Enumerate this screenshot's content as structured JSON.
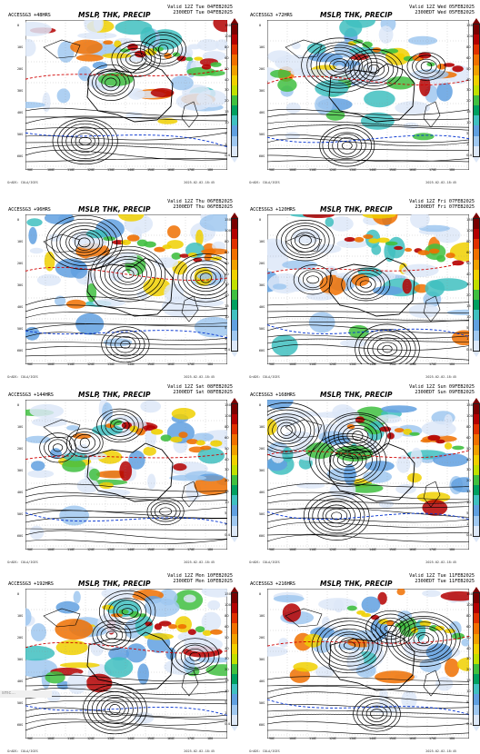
{
  "panels": [
    {
      "model_run": "ACCESSG3 +48HRS",
      "title": "MSLP, THK, PRECIP",
      "valid_line1": "Valid 12Z Tue 04FEB2025",
      "valid_line2": "2300EDT Tue 04FEB2025"
    },
    {
      "model_run": "ACCESSG3 +72HRS",
      "title": "MSLP, THK, PRECIP",
      "valid_line1": "Valid 12Z Wed 05FEB2025",
      "valid_line2": "2300EDT Wed 05FEB2025"
    },
    {
      "model_run": "ACCESSG3 +96HRS",
      "title": "MSLP, THK, PRECIP",
      "valid_line1": "Valid 12Z Thu 06FEB2025",
      "valid_line2": "2300EDT Thu 06FEB2025"
    },
    {
      "model_run": "ACCESSG3 +120HRS",
      "title": "MSLP, THK, PRECIP",
      "valid_line1": "Valid 12Z Fri 07FEB2025",
      "valid_line2": "2300EDT Fri 07FEB2025"
    },
    {
      "model_run": "ACCESSG3 +144HRS",
      "title": "MSLP, THK, PRECIP",
      "valid_line1": "Valid 12Z Sat 08FEB2025",
      "valid_line2": "2300EDT Sat 08FEB2025"
    },
    {
      "model_run": "ACCESSG3 +168HRS",
      "title": "MSLP, THK, PRECIP",
      "valid_line1": "Valid 12Z Sun 09FEB2025",
      "valid_line2": "2300EDT Sun 09FEB2025"
    },
    {
      "model_run": "ACCESSG3 +192HRS",
      "title": "MSLP, THK, PRECIP",
      "valid_line1": "Valid 12Z Mon 10FEB2025",
      "valid_line2": "2300EDT Mon 10FEB2025"
    },
    {
      "model_run": "ACCESSG3 +216HRS",
      "title": "MSLP, THK, PRECIP",
      "valid_line1": "Valid 12Z Tue 11FEB2025",
      "valid_line2": "2300EDT Tue 11FEB2025"
    }
  ],
  "colorbar_labels": [
    "150",
    "100",
    "80",
    "60",
    "50",
    "40",
    "30",
    "20",
    "15",
    "10",
    "5",
    "1",
    "0.4"
  ],
  "colorbar_colors": [
    "#7a0000",
    "#b40000",
    "#e03000",
    "#f07000",
    "#f0a000",
    "#f0d000",
    "#c0e000",
    "#40c040",
    "#00a060",
    "#40c0c0",
    "#60a0e0",
    "#a0c8f0",
    "#dde8f8"
  ],
  "x_ticks": [
    "90E",
    "100E",
    "110E",
    "120E",
    "130E",
    "140E",
    "150E",
    "160E",
    "170E",
    "180"
  ],
  "y_ticks": [
    "0",
    "10S",
    "20S",
    "30S",
    "40S",
    "50S",
    "60S"
  ],
  "footer_left": "GrADS: COLA/IGES",
  "footer_right": "2025-02-02-18:45",
  "scroll_hint": "smc..."
}
